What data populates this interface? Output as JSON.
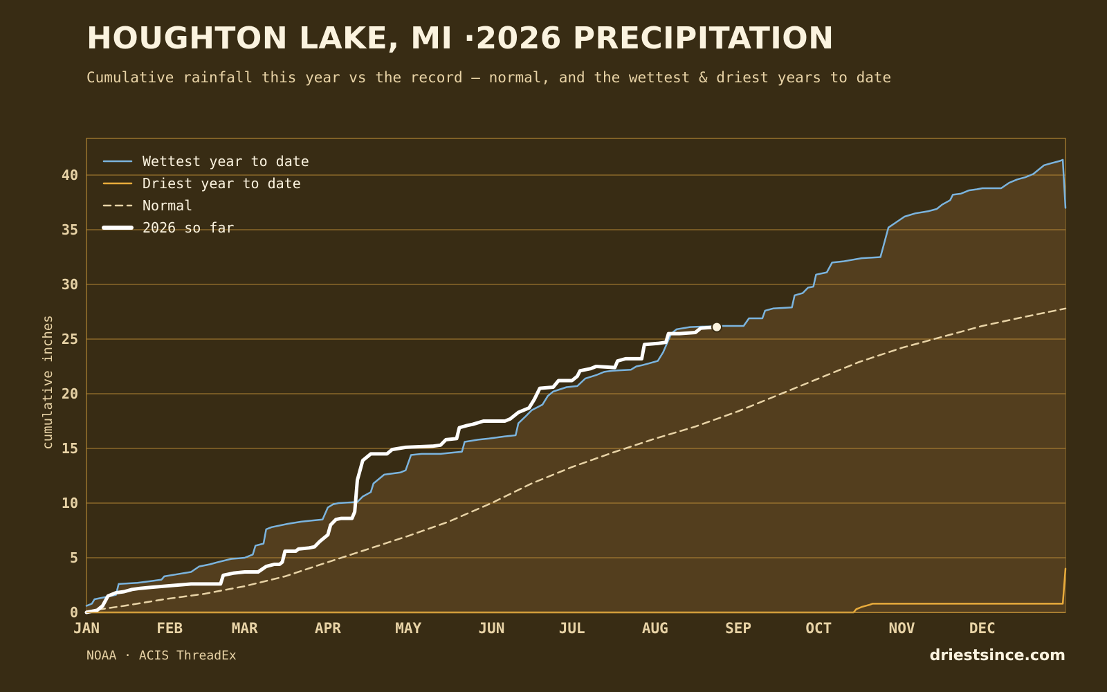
{
  "header": {
    "title": "HOUGHTON LAKE, MI ·2026 PRECIPITATION",
    "subtitle": "Cumulative rainfall this year vs the record — normal, and the wettest & driest years to date"
  },
  "footer": {
    "source": "NOAA · ACIS ThreadEx",
    "site": "driestsince.com"
  },
  "colors": {
    "background": "#382c14",
    "fill": "#533e1e",
    "grid": "#c9963a",
    "wettest": "#7bb4de",
    "driest": "#e9ac3c",
    "normal": "#e8d3a6",
    "current": "#ffffff",
    "text": "#e8d3a6"
  },
  "chart_data": {
    "type": "line",
    "ylabel": "cumulative inches",
    "xlabel": "",
    "x_unit": "day of year",
    "xlim": [
      1,
      366
    ],
    "ylim": [
      0,
      40
    ],
    "yticks": [
      0,
      5,
      10,
      15,
      20,
      25,
      30,
      35,
      40
    ],
    "month_ticks": [
      {
        "label": "JAN",
        "day": 1
      },
      {
        "label": "FEB",
        "day": 32
      },
      {
        "label": "MAR",
        "day": 60
      },
      {
        "label": "APR",
        "day": 91
      },
      {
        "label": "MAY",
        "day": 121
      },
      {
        "label": "JUN",
        "day": 152
      },
      {
        "label": "JUL",
        "day": 182
      },
      {
        "label": "AUG",
        "day": 213
      },
      {
        "label": "SEP",
        "day": 244
      },
      {
        "label": "OCT",
        "day": 274
      },
      {
        "label": "NOV",
        "day": 305
      },
      {
        "label": "DEC",
        "day": 335
      }
    ],
    "grid": true,
    "legend_position": "top-left",
    "series": [
      {
        "name": "Wettest year to date",
        "key": "wettest",
        "style": "solid",
        "points": [
          [
            1,
            0.6
          ],
          [
            3,
            0.8
          ],
          [
            4,
            1.2
          ],
          [
            8,
            1.4
          ],
          [
            12,
            1.6
          ],
          [
            13,
            2.6
          ],
          [
            20,
            2.7
          ],
          [
            26,
            2.9
          ],
          [
            29,
            3.0
          ],
          [
            30,
            3.3
          ],
          [
            35,
            3.5
          ],
          [
            40,
            3.7
          ],
          [
            43,
            4.2
          ],
          [
            47,
            4.4
          ],
          [
            50,
            4.6
          ],
          [
            55,
            4.9
          ],
          [
            60,
            5.0
          ],
          [
            63,
            5.3
          ],
          [
            64,
            6.1
          ],
          [
            67,
            6.3
          ],
          [
            68,
            7.6
          ],
          [
            70,
            7.8
          ],
          [
            76,
            8.1
          ],
          [
            81,
            8.3
          ],
          [
            85,
            8.4
          ],
          [
            89,
            8.5
          ],
          [
            91,
            9.6
          ],
          [
            93,
            9.9
          ],
          [
            95,
            10.0
          ],
          [
            102,
            10.1
          ],
          [
            104,
            10.6
          ],
          [
            107,
            11.0
          ],
          [
            108,
            11.8
          ],
          [
            112,
            12.6
          ],
          [
            118,
            12.8
          ],
          [
            120,
            13.0
          ],
          [
            122,
            14.4
          ],
          [
            126,
            14.5
          ],
          [
            133,
            14.5
          ],
          [
            137,
            14.6
          ],
          [
            141,
            14.7
          ],
          [
            142,
            15.6
          ],
          [
            147,
            15.8
          ],
          [
            151,
            15.9
          ],
          [
            157,
            16.1
          ],
          [
            161,
            16.2
          ],
          [
            162,
            17.3
          ],
          [
            165,
            18.0
          ],
          [
            167,
            18.5
          ],
          [
            171,
            19.0
          ],
          [
            173,
            19.8
          ],
          [
            175,
            20.2
          ],
          [
            180,
            20.6
          ],
          [
            184,
            20.7
          ],
          [
            187,
            21.4
          ],
          [
            191,
            21.7
          ],
          [
            194,
            22.0
          ],
          [
            197,
            22.1
          ],
          [
            204,
            22.2
          ],
          [
            206,
            22.5
          ],
          [
            208,
            22.6
          ],
          [
            211,
            22.8
          ],
          [
            214,
            23.0
          ],
          [
            216,
            23.8
          ],
          [
            219,
            25.5
          ],
          [
            221,
            25.9
          ],
          [
            226,
            26.1
          ],
          [
            238,
            26.2
          ],
          [
            246,
            26.2
          ],
          [
            248,
            26.9
          ],
          [
            253,
            26.9
          ],
          [
            254,
            27.6
          ],
          [
            257,
            27.8
          ],
          [
            264,
            27.9
          ],
          [
            265,
            29.0
          ],
          [
            268,
            29.2
          ],
          [
            270,
            29.7
          ],
          [
            272,
            29.8
          ],
          [
            273,
            30.9
          ],
          [
            277,
            31.1
          ],
          [
            279,
            32.0
          ],
          [
            283,
            32.1
          ],
          [
            290,
            32.4
          ],
          [
            297,
            32.5
          ],
          [
            298,
            33.4
          ],
          [
            300,
            35.2
          ],
          [
            303,
            35.7
          ],
          [
            306,
            36.2
          ],
          [
            310,
            36.5
          ],
          [
            315,
            36.7
          ],
          [
            318,
            36.9
          ],
          [
            320,
            37.3
          ],
          [
            323,
            37.7
          ],
          [
            324,
            38.2
          ],
          [
            327,
            38.3
          ],
          [
            330,
            38.6
          ],
          [
            333,
            38.7
          ],
          [
            335,
            38.8
          ],
          [
            342,
            38.8
          ],
          [
            345,
            39.3
          ],
          [
            348,
            39.6
          ],
          [
            351,
            39.8
          ],
          [
            354,
            40.1
          ],
          [
            356,
            40.5
          ],
          [
            358,
            40.9
          ],
          [
            361,
            41.1
          ],
          [
            364,
            41.3
          ],
          [
            365,
            41.4
          ],
          [
            366,
            37.0
          ]
        ]
      },
      {
        "name": "Driest year to date",
        "key": "driest",
        "style": "solid",
        "points": [
          [
            1,
            0.0
          ],
          [
            287,
            0.0
          ],
          [
            288,
            0.3
          ],
          [
            290,
            0.5
          ],
          [
            293,
            0.7
          ],
          [
            294,
            0.8
          ],
          [
            365,
            0.8
          ],
          [
            366,
            4.0
          ]
        ]
      },
      {
        "name": "Normal",
        "key": "normal",
        "style": "dashed",
        "points": [
          [
            1,
            0.1
          ],
          [
            15,
            0.6
          ],
          [
            30,
            1.2
          ],
          [
            45,
            1.7
          ],
          [
            60,
            2.4
          ],
          [
            75,
            3.3
          ],
          [
            91,
            4.6
          ],
          [
            106,
            5.8
          ],
          [
            121,
            7.0
          ],
          [
            136,
            8.3
          ],
          [
            152,
            10.0
          ],
          [
            167,
            11.8
          ],
          [
            182,
            13.3
          ],
          [
            197,
            14.6
          ],
          [
            213,
            15.9
          ],
          [
            228,
            17.0
          ],
          [
            244,
            18.4
          ],
          [
            259,
            19.9
          ],
          [
            274,
            21.4
          ],
          [
            289,
            22.9
          ],
          [
            305,
            24.2
          ],
          [
            320,
            25.2
          ],
          [
            335,
            26.2
          ],
          [
            350,
            27.0
          ],
          [
            366,
            27.8
          ]
        ]
      },
      {
        "name": "2026 so far",
        "key": "current",
        "style": "thick",
        "points": [
          [
            1,
            0.0
          ],
          [
            5,
            0.2
          ],
          [
            7,
            0.6
          ],
          [
            9,
            1.5
          ],
          [
            12,
            1.8
          ],
          [
            15,
            1.9
          ],
          [
            18,
            2.1
          ],
          [
            21,
            2.2
          ],
          [
            25,
            2.3
          ],
          [
            30,
            2.4
          ],
          [
            35,
            2.5
          ],
          [
            40,
            2.6
          ],
          [
            44,
            2.6
          ],
          [
            48,
            2.6
          ],
          [
            51,
            2.6
          ],
          [
            52,
            3.4
          ],
          [
            56,
            3.6
          ],
          [
            60,
            3.7
          ],
          [
            65,
            3.7
          ],
          [
            68,
            4.2
          ],
          [
            71,
            4.4
          ],
          [
            73,
            4.4
          ],
          [
            74,
            4.6
          ],
          [
            75,
            5.6
          ],
          [
            79,
            5.6
          ],
          [
            80,
            5.8
          ],
          [
            84,
            5.9
          ],
          [
            86,
            6.0
          ],
          [
            88,
            6.5
          ],
          [
            91,
            7.1
          ],
          [
            92,
            8.0
          ],
          [
            94,
            8.5
          ],
          [
            96,
            8.6
          ],
          [
            100,
            8.6
          ],
          [
            101,
            9.2
          ],
          [
            102,
            12.1
          ],
          [
            104,
            13.9
          ],
          [
            107,
            14.5
          ],
          [
            113,
            14.5
          ],
          [
            115,
            14.9
          ],
          [
            120,
            15.1
          ],
          [
            130,
            15.2
          ],
          [
            133,
            15.3
          ],
          [
            135,
            15.8
          ],
          [
            139,
            15.9
          ],
          [
            140,
            16.9
          ],
          [
            143,
            17.1
          ],
          [
            145,
            17.2
          ],
          [
            149,
            17.5
          ],
          [
            157,
            17.5
          ],
          [
            159,
            17.7
          ],
          [
            162,
            18.3
          ],
          [
            166,
            18.7
          ],
          [
            168,
            19.5
          ],
          [
            170,
            20.5
          ],
          [
            175,
            20.6
          ],
          [
            177,
            21.2
          ],
          [
            182,
            21.2
          ],
          [
            184,
            21.6
          ],
          [
            185,
            22.1
          ],
          [
            189,
            22.3
          ],
          [
            191,
            22.5
          ],
          [
            198,
            22.4
          ],
          [
            199,
            23.0
          ],
          [
            202,
            23.2
          ],
          [
            208,
            23.2
          ],
          [
            209,
            24.5
          ],
          [
            214,
            24.6
          ],
          [
            217,
            24.7
          ],
          [
            218,
            25.5
          ],
          [
            222,
            25.5
          ],
          [
            228,
            25.6
          ],
          [
            230,
            26.0
          ],
          [
            236,
            26.1
          ]
        ]
      }
    ],
    "current_marker": {
      "day": 236,
      "value": 26.1
    }
  }
}
